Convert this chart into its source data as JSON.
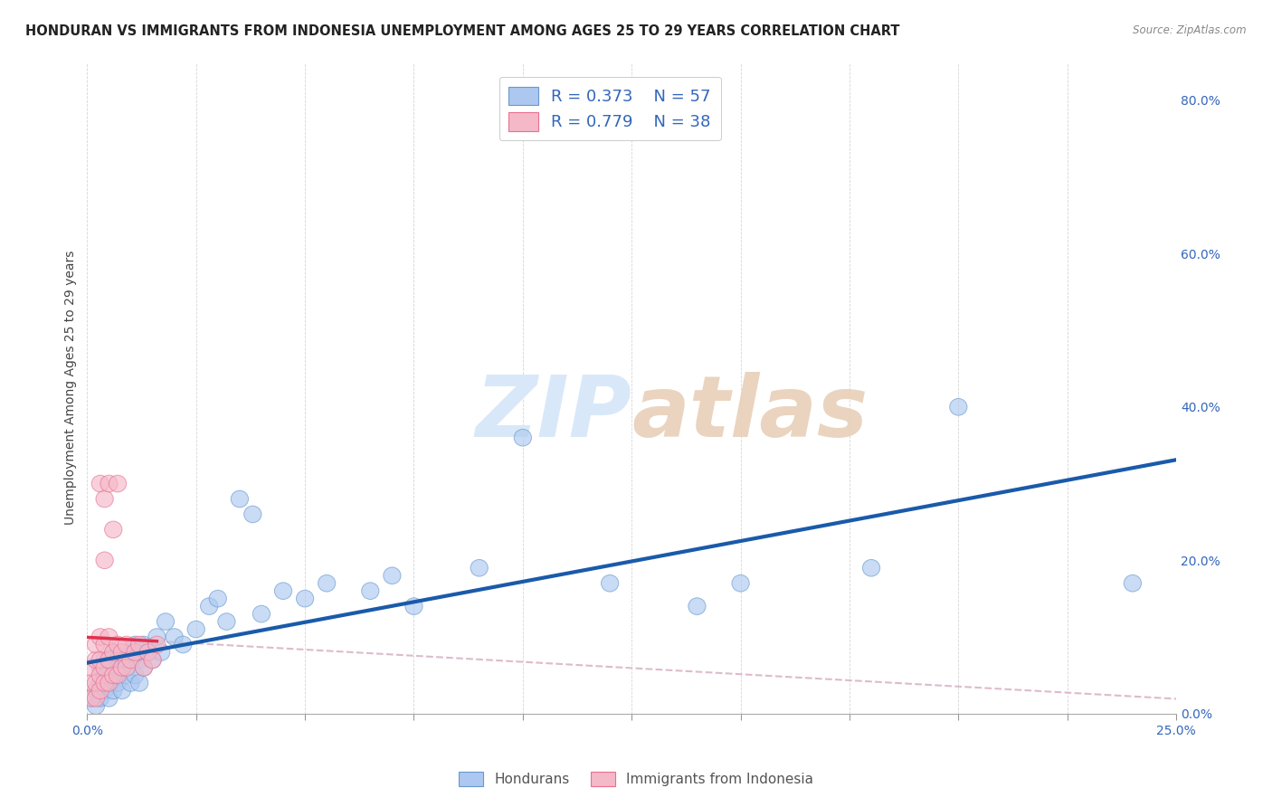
{
  "title": "HONDURAN VS IMMIGRANTS FROM INDONESIA UNEMPLOYMENT AMONG AGES 25 TO 29 YEARS CORRELATION CHART",
  "source": "Source: ZipAtlas.com",
  "ylabel": "Unemployment Among Ages 25 to 29 years",
  "xlim": [
    0.0,
    0.25
  ],
  "ylim": [
    0.0,
    0.85
  ],
  "xticks": [
    0.0,
    0.025,
    0.05,
    0.075,
    0.1,
    0.125,
    0.15,
    0.175,
    0.2,
    0.225,
    0.25
  ],
  "yticks_right": [
    0.0,
    0.2,
    0.4,
    0.6,
    0.8
  ],
  "ytick_labels_right": [
    "0.0%",
    "20.0%",
    "40.0%",
    "60.0%",
    "80.0%"
  ],
  "legend_blue_label": "Hondurans",
  "legend_pink_label": "Immigrants from Indonesia",
  "legend_R_blue": "R = 0.373",
  "legend_N_blue": "N = 57",
  "legend_R_pink": "R = 0.779",
  "legend_N_pink": "N = 38",
  "blue_fill": "#adc8f0",
  "blue_edge": "#6699cc",
  "pink_fill": "#f5b8c8",
  "pink_edge": "#e87090",
  "trend_blue": "#1a5aaa",
  "trend_pink": "#e0304e",
  "ref_line_color": "#ddbbcc",
  "watermark_color": "#d8e8f8",
  "blue_x": [
    0.001,
    0.002,
    0.002,
    0.003,
    0.003,
    0.003,
    0.004,
    0.004,
    0.004,
    0.005,
    0.005,
    0.005,
    0.006,
    0.006,
    0.006,
    0.007,
    0.007,
    0.008,
    0.008,
    0.009,
    0.009,
    0.01,
    0.01,
    0.011,
    0.011,
    0.012,
    0.012,
    0.013,
    0.013,
    0.014,
    0.015,
    0.016,
    0.017,
    0.018,
    0.02,
    0.022,
    0.025,
    0.028,
    0.03,
    0.032,
    0.035,
    0.038,
    0.04,
    0.045,
    0.05,
    0.055,
    0.065,
    0.07,
    0.075,
    0.09,
    0.1,
    0.12,
    0.14,
    0.15,
    0.18,
    0.2,
    0.24
  ],
  "blue_y": [
    0.02,
    0.01,
    0.03,
    0.02,
    0.04,
    0.06,
    0.03,
    0.05,
    0.07,
    0.02,
    0.04,
    0.06,
    0.03,
    0.05,
    0.08,
    0.04,
    0.07,
    0.03,
    0.06,
    0.05,
    0.07,
    0.04,
    0.08,
    0.05,
    0.09,
    0.04,
    0.07,
    0.06,
    0.09,
    0.08,
    0.07,
    0.1,
    0.08,
    0.12,
    0.1,
    0.09,
    0.11,
    0.14,
    0.15,
    0.12,
    0.28,
    0.26,
    0.13,
    0.16,
    0.15,
    0.17,
    0.16,
    0.18,
    0.14,
    0.19,
    0.36,
    0.17,
    0.14,
    0.17,
    0.19,
    0.4,
    0.17
  ],
  "pink_x": [
    0.001,
    0.001,
    0.001,
    0.002,
    0.002,
    0.002,
    0.002,
    0.003,
    0.003,
    0.003,
    0.003,
    0.003,
    0.004,
    0.004,
    0.004,
    0.004,
    0.004,
    0.005,
    0.005,
    0.005,
    0.005,
    0.006,
    0.006,
    0.006,
    0.007,
    0.007,
    0.007,
    0.008,
    0.008,
    0.009,
    0.009,
    0.01,
    0.011,
    0.012,
    0.013,
    0.014,
    0.015,
    0.016
  ],
  "pink_y": [
    0.02,
    0.04,
    0.06,
    0.02,
    0.04,
    0.07,
    0.09,
    0.03,
    0.05,
    0.07,
    0.1,
    0.3,
    0.04,
    0.06,
    0.09,
    0.2,
    0.28,
    0.04,
    0.07,
    0.1,
    0.3,
    0.05,
    0.08,
    0.24,
    0.05,
    0.09,
    0.3,
    0.06,
    0.08,
    0.06,
    0.09,
    0.07,
    0.08,
    0.09,
    0.06,
    0.08,
    0.07,
    0.09
  ]
}
